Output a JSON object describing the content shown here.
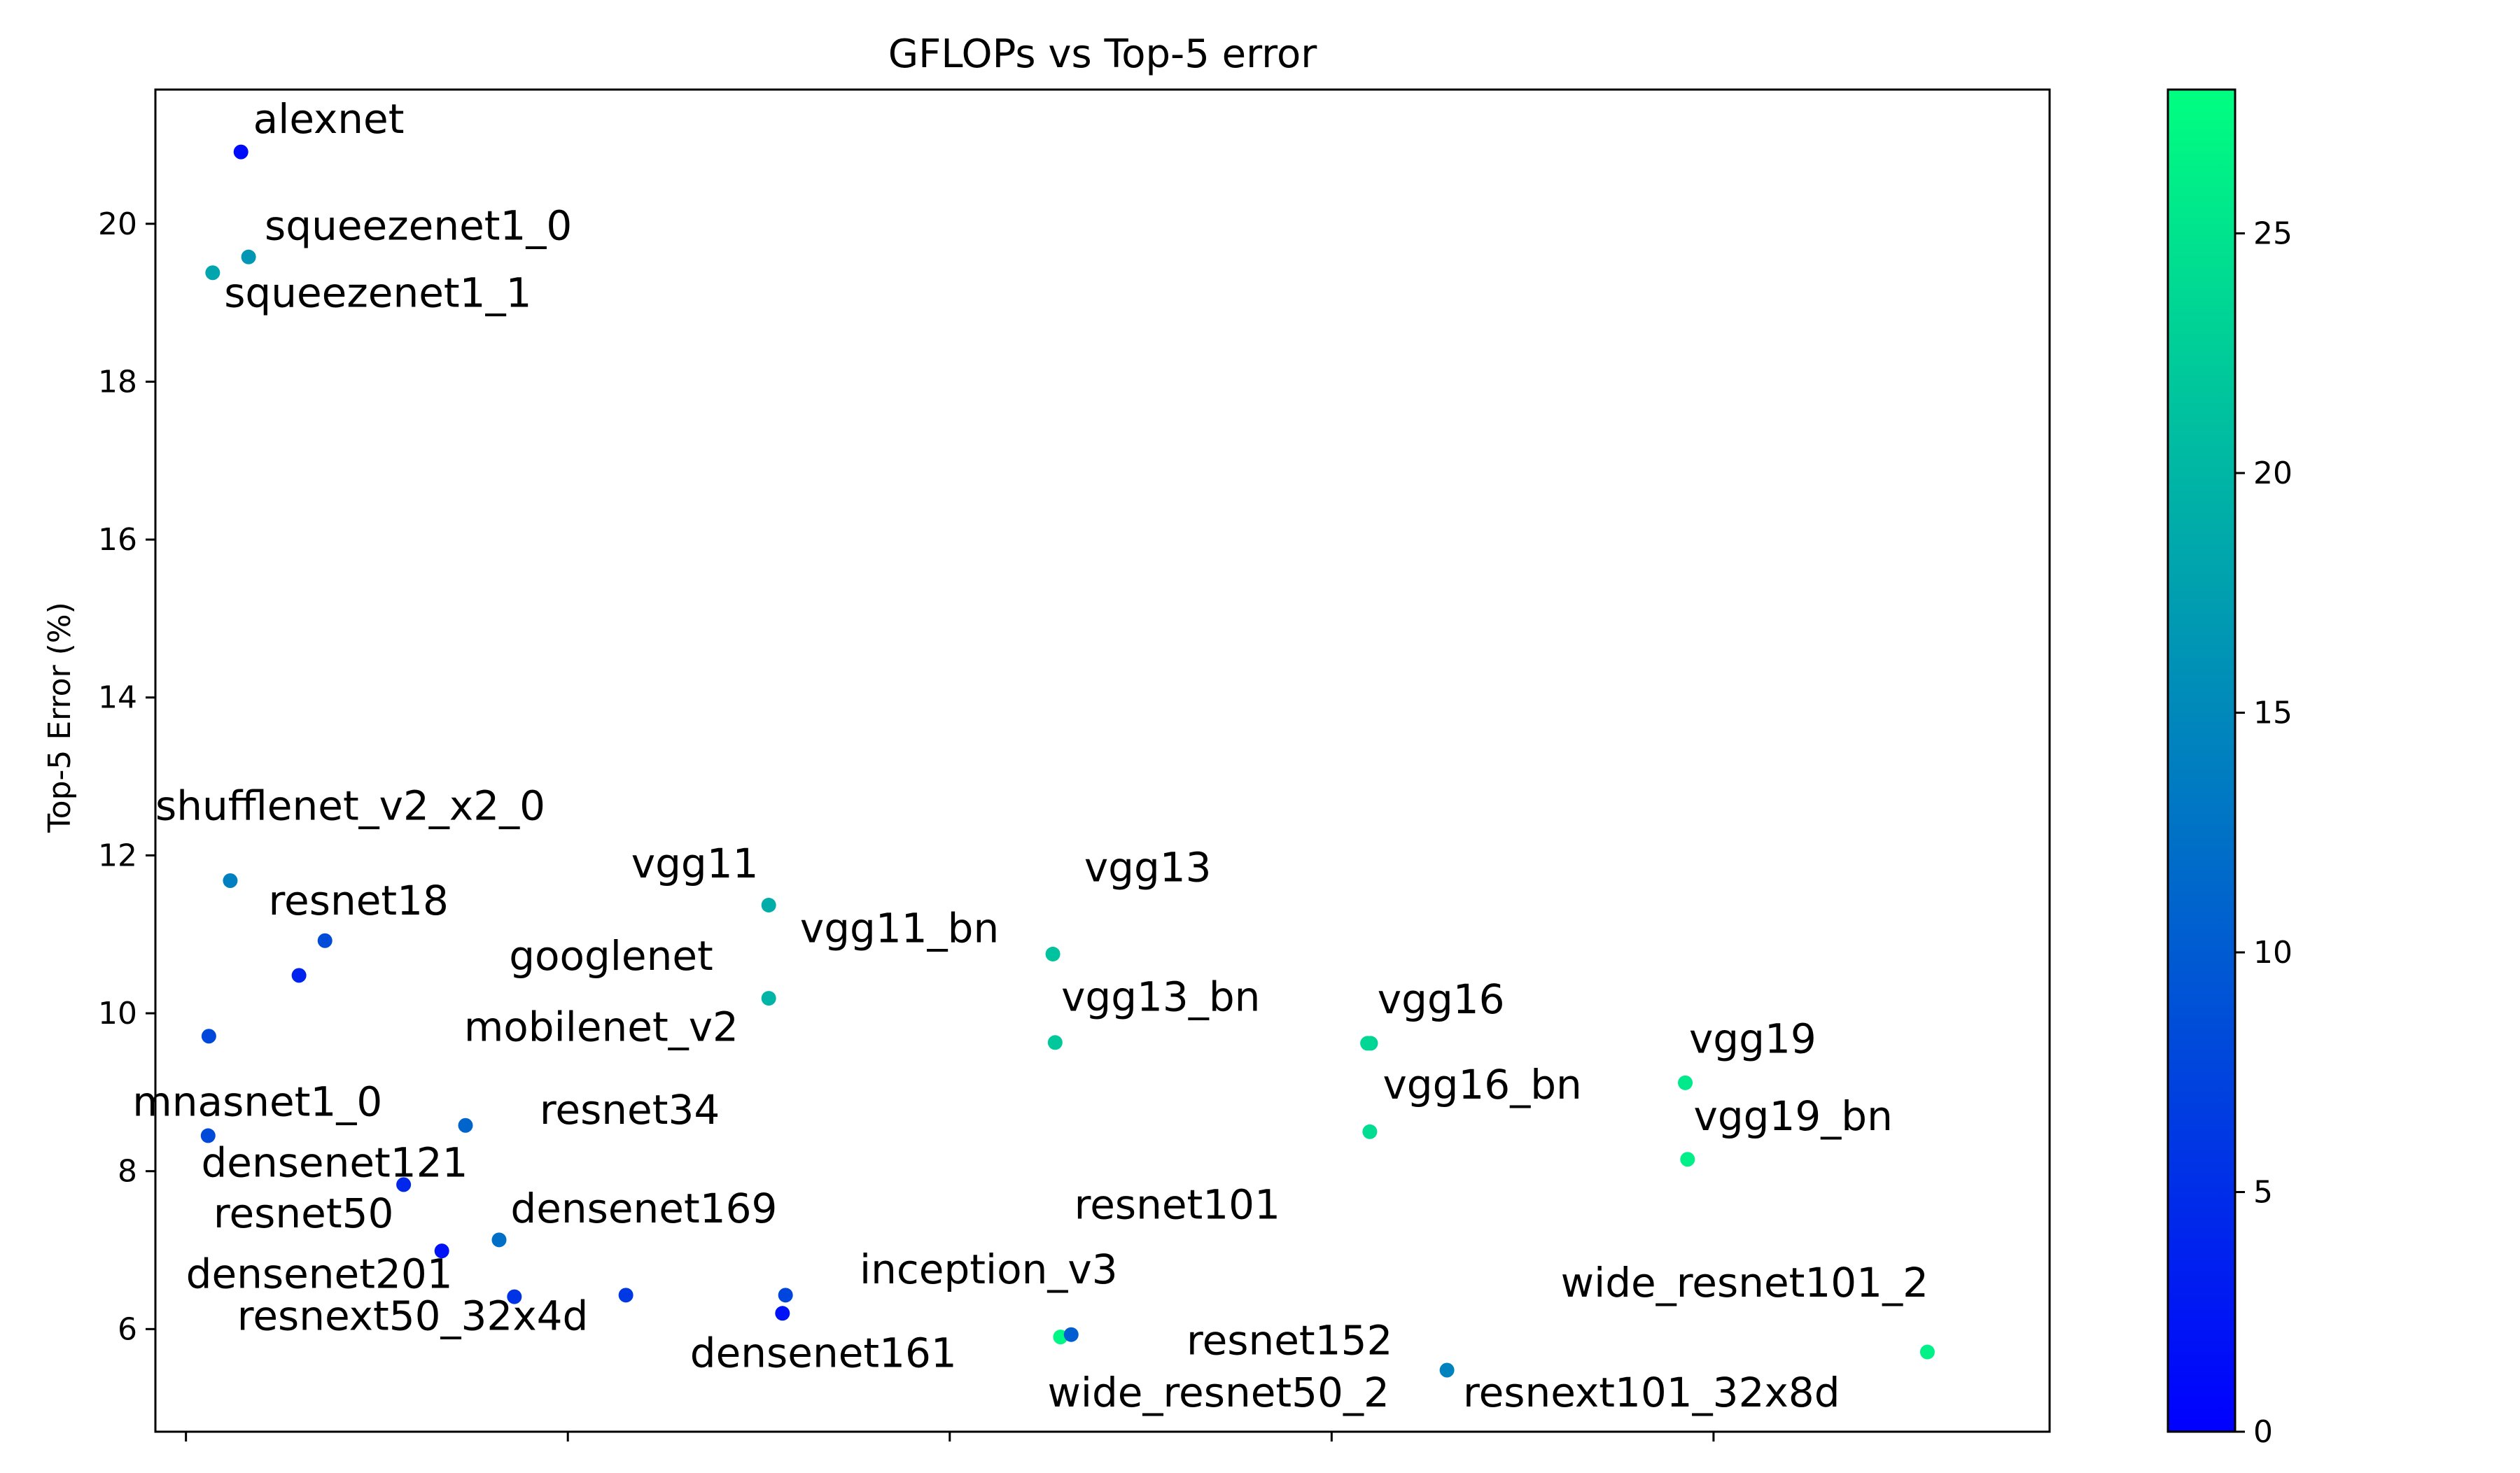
{
  "chart_data": {
    "type": "scatter",
    "title": "GFLOPs vs Top-5 error",
    "xlabel": "",
    "ylabel": "Top-5 Error (%)",
    "xlim": [
      -0.4,
      24.4
    ],
    "ylim": [
      4.7,
      21.7
    ],
    "x_ticks": [
      0,
      5,
      10,
      15,
      20
    ],
    "y_ticks": [
      6,
      8,
      10,
      12,
      14,
      16,
      18,
      20
    ],
    "grid": false,
    "colormap": "winter",
    "colorbar": {
      "min": 0,
      "max": 28,
      "ticks": [
        0,
        5,
        10,
        15,
        20,
        25
      ]
    },
    "colors": {
      "colormap_low": "#0000ff",
      "colormap_high": "#00ff80",
      "axes": "#000000",
      "background": "#ffffff"
    },
    "points": [
      {
        "name": "alexnet",
        "x": 0.72,
        "y": 20.91,
        "c": 1.3,
        "label_x": 0.88,
        "label_y": 21.15
      },
      {
        "name": "squeezenet1_0",
        "x": 0.82,
        "y": 19.58,
        "c": 16.5,
        "label_x": 1.03,
        "label_y": 19.8
      },
      {
        "name": "squeezenet1_1",
        "x": 0.35,
        "y": 19.38,
        "c": 18.1,
        "label_x": 0.5,
        "label_y": 18.95
      },
      {
        "name": "shufflenet_v2_x2_0",
        "x": 0.58,
        "y": 11.68,
        "c": 14.0,
        "label_x": -0.4,
        "label_y": 12.45
      },
      {
        "name": "resnet18",
        "x": 1.82,
        "y": 10.92,
        "c": 8.3,
        "label_x": 1.08,
        "label_y": 11.25
      },
      {
        "name": "mnasnet1_0",
        "x": 1.48,
        "y": 10.48,
        "c": 4.0,
        "label_x": -0.7,
        "label_y": 8.7
      },
      {
        "name": "densenet121",
        "x": 0.3,
        "y": 9.71,
        "c": 7.8,
        "label_x": 0.2,
        "label_y": 7.93
      },
      {
        "name": "resnet34",
        "x": 3.66,
        "y": 8.58,
        "c": 11.0,
        "label_x": 4.63,
        "label_y": 8.6
      },
      {
        "name": "resnet50",
        "x": 0.29,
        "y": 8.45,
        "c": 8.1,
        "label_x": 0.36,
        "label_y": 7.29
      },
      {
        "name": "densenet169",
        "x": 2.85,
        "y": 7.83,
        "c": 4.3,
        "label_x": 4.25,
        "label_y": 7.35
      },
      {
        "name": "densenet201",
        "x": 3.35,
        "y": 6.99,
        "c": 2.0,
        "label_x": 0.0,
        "label_y": 6.52
      },
      {
        "name": "resnext50_32x4d",
        "x": 4.1,
        "y": 7.13,
        "c": 12.2,
        "label_x": 0.67,
        "label_y": 5.99
      },
      {
        "name": "googlenet",
        "x": 4.3,
        "y": 6.41,
        "c": 5.6,
        "label_x": 4.23,
        "label_y": 10.55
      },
      {
        "name": "mobilenet_v2",
        "x": 5.76,
        "y": 6.43,
        "c": 6.1,
        "label_x": 3.64,
        "label_y": 9.65
      },
      {
        "name": "vgg11",
        "x": 7.63,
        "y": 11.37,
        "c": 19.0,
        "label_x": 5.83,
        "label_y": 11.72
      },
      {
        "name": "vgg11_bn",
        "x": 7.63,
        "y": 10.19,
        "c": 19.9,
        "label_x": 8.04,
        "label_y": 10.9
      },
      {
        "name": "inception_v3",
        "x": 7.85,
        "y": 6.43,
        "c": 7.6,
        "label_x": 8.82,
        "label_y": 6.58
      },
      {
        "name": "densenet161",
        "x": 7.81,
        "y": 6.2,
        "c": 2.0,
        "label_x": 6.6,
        "label_y": 5.52
      },
      {
        "name": "vgg13",
        "x": 11.35,
        "y": 10.75,
        "c": 21.3,
        "label_x": 11.76,
        "label_y": 11.67
      },
      {
        "name": "vgg13_bn",
        "x": 11.38,
        "y": 9.63,
        "c": 22.0,
        "label_x": 11.46,
        "label_y": 10.03
      },
      {
        "name": "resnet101",
        "x": 11.45,
        "y": 5.9,
        "c": 27.0,
        "label_x": 11.63,
        "label_y": 7.4
      },
      {
        "name": "wide_resnet50_2",
        "x": 11.59,
        "y": 5.93,
        "c": 10.3,
        "label_x": 11.28,
        "label_y": 5.02
      },
      {
        "name": "resnet152",
        "x": 15.51,
        "y": 9.62,
        "c": 23.0,
        "label_x": 13.1,
        "label_y": 5.68
      },
      {
        "name": "resnext101_32x8d",
        "x": 16.51,
        "y": 5.48,
        "c": 14.3,
        "label_x": 16.72,
        "label_y": 5.02
      },
      {
        "name": "vgg16",
        "x": 15.47,
        "y": 9.62,
        "c": 23.6,
        "label_x": 15.6,
        "label_y": 10.0
      },
      {
        "name": "vgg16_bn",
        "x": 15.5,
        "y": 8.5,
        "c": 24.2,
        "label_x": 15.67,
        "label_y": 8.92
      },
      {
        "name": "vgg19",
        "x": 19.63,
        "y": 9.12,
        "c": 25.6,
        "label_x": 19.68,
        "label_y": 9.5
      },
      {
        "name": "vgg19_bn",
        "x": 19.66,
        "y": 8.15,
        "c": 26.2,
        "label_x": 19.74,
        "label_y": 8.52
      },
      {
        "name": "wide_resnet101_2",
        "x": 22.8,
        "y": 5.71,
        "c": 26.5,
        "label_x": 18.0,
        "label_y": 6.41
      }
    ]
  }
}
